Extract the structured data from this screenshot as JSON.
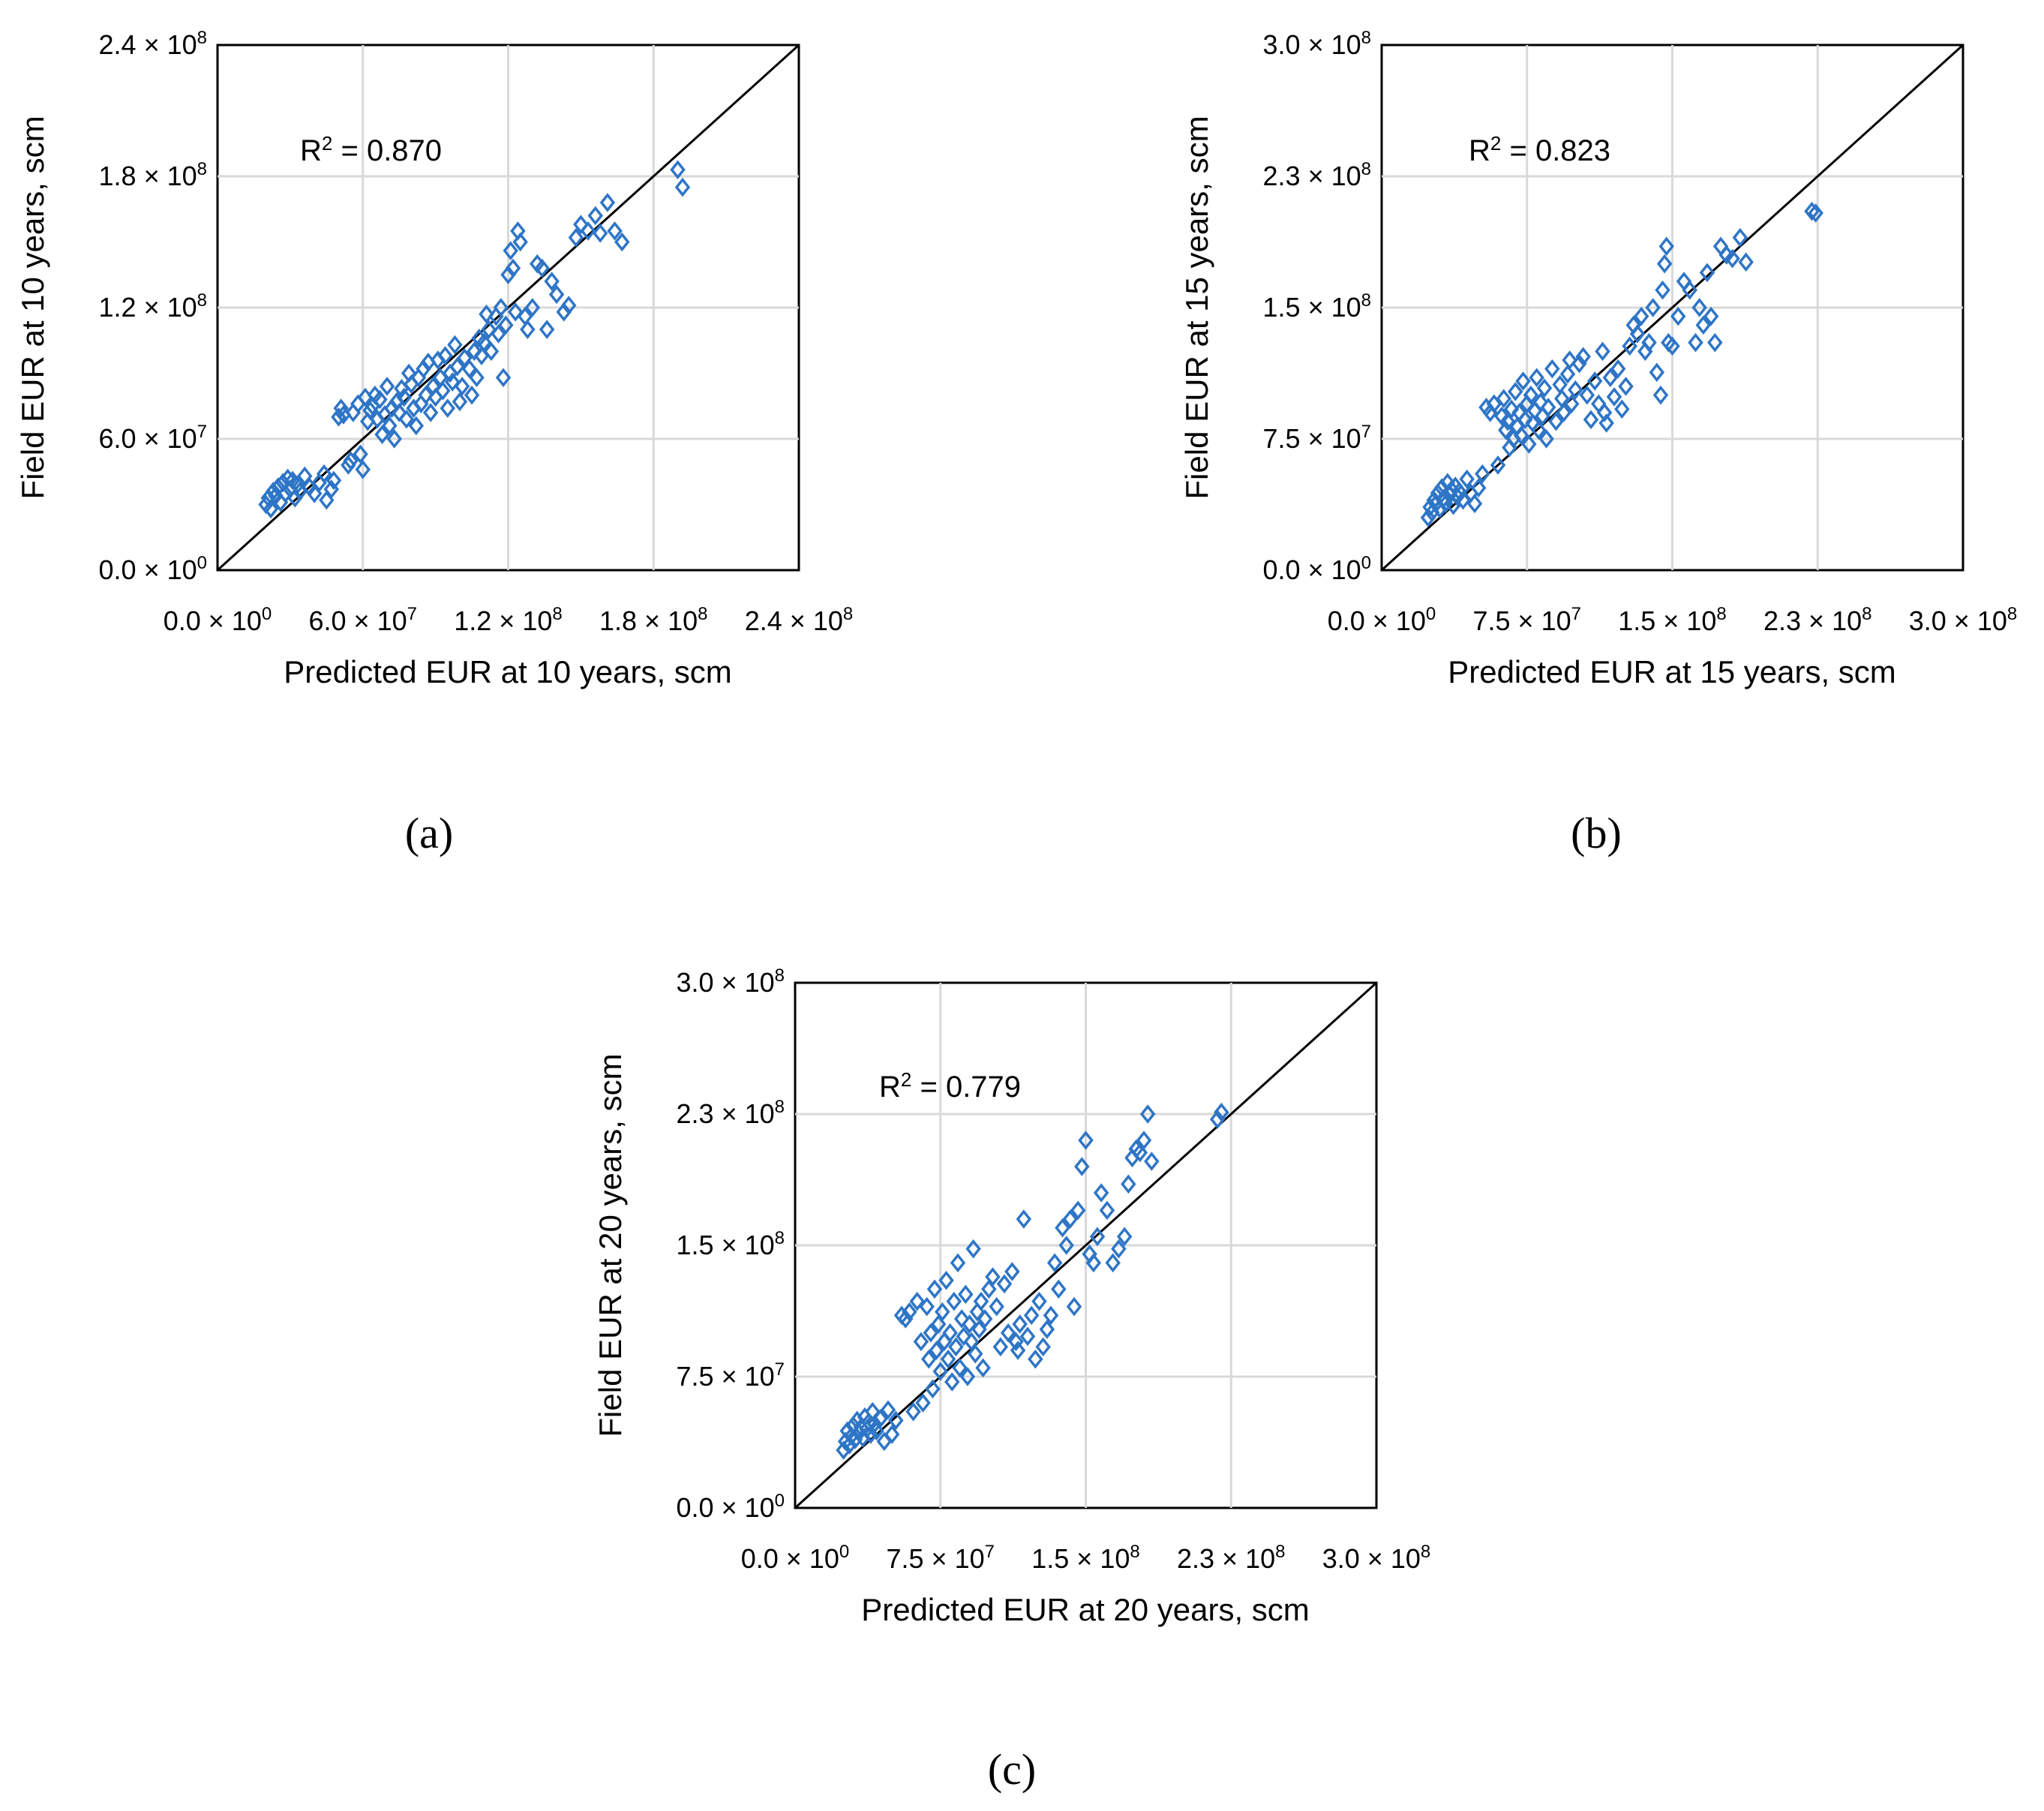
{
  "chart_data": [
    {
      "type": "scatter",
      "panel_label": "(a)",
      "xlabel": "Predicted EUR at 10 years, scm",
      "ylabel": "Field EUR at 10 years, scm",
      "annotation": {
        "prefix": "R",
        "exponent": "2",
        "text": " = 0.870"
      },
      "xlim": [
        0,
        240000000
      ],
      "ylim": [
        0,
        240000000
      ],
      "ticks": [
        0,
        60000000,
        120000000,
        180000000,
        240000000
      ],
      "tick_labels": [
        {
          "mantissa": "0.0",
          "exponent": "0"
        },
        {
          "mantissa": "6.0",
          "exponent": "7"
        },
        {
          "mantissa": "1.2",
          "exponent": "8"
        },
        {
          "mantissa": "1.8",
          "exponent": "8"
        },
        {
          "mantissa": "2.4",
          "exponent": "8"
        }
      ],
      "reference_line": "y = x",
      "marker": "open-diamond",
      "marker_color": "#2E75C6",
      "x_unit": 1000000,
      "points": [
        [
          20,
          30
        ],
        [
          21,
          33
        ],
        [
          22,
          28
        ],
        [
          23,
          36
        ],
        [
          24,
          34
        ],
        [
          25,
          38
        ],
        [
          26,
          31
        ],
        [
          27,
          40
        ],
        [
          28,
          35
        ],
        [
          29,
          42
        ],
        [
          30,
          37
        ],
        [
          31,
          41
        ],
        [
          32,
          33
        ],
        [
          33,
          39
        ],
        [
          34,
          36
        ],
        [
          36,
          43
        ],
        [
          38,
          38
        ],
        [
          40,
          35
        ],
        [
          42,
          40
        ],
        [
          44,
          44
        ],
        [
          45,
          32
        ],
        [
          47,
          37
        ],
        [
          48,
          41
        ],
        [
          50,
          70
        ],
        [
          51,
          74
        ],
        [
          52,
          71
        ],
        [
          54,
          48
        ],
        [
          55,
          50
        ],
        [
          56,
          72
        ],
        [
          58,
          76
        ],
        [
          59,
          53
        ],
        [
          60,
          46
        ],
        [
          61,
          79
        ],
        [
          62,
          68
        ],
        [
          63,
          73
        ],
        [
          64,
          75
        ],
        [
          65,
          80
        ],
        [
          66,
          69
        ],
        [
          67,
          78
        ],
        [
          68,
          62
        ],
        [
          69,
          71
        ],
        [
          70,
          84
        ],
        [
          71,
          66
        ],
        [
          72,
          74
        ],
        [
          73,
          60
        ],
        [
          74,
          77
        ],
        [
          75,
          72
        ],
        [
          76,
          83
        ],
        [
          77,
          79
        ],
        [
          78,
          69
        ],
        [
          79,
          90
        ],
        [
          80,
          85
        ],
        [
          81,
          74
        ],
        [
          82,
          66
        ],
        [
          83,
          88
        ],
        [
          84,
          76
        ],
        [
          85,
          92
        ],
        [
          86,
          80
        ],
        [
          87,
          95
        ],
        [
          88,
          72
        ],
        [
          89,
          84
        ],
        [
          90,
          79
        ],
        [
          91,
          96
        ],
        [
          92,
          88
        ],
        [
          93,
          82
        ],
        [
          94,
          98
        ],
        [
          95,
          74
        ],
        [
          96,
          90
        ],
        [
          97,
          86
        ],
        [
          98,
          103
        ],
        [
          99,
          93
        ],
        [
          100,
          77
        ],
        [
          101,
          84
        ],
        [
          102,
          97
        ],
        [
          104,
          92
        ],
        [
          105,
          80
        ],
        [
          106,
          100
        ],
        [
          107,
          88
        ],
        [
          108,
          106
        ],
        [
          109,
          98
        ],
        [
          110,
          104
        ],
        [
          111,
          117
        ],
        [
          112,
          110
        ],
        [
          113,
          100
        ],
        [
          115,
          116
        ],
        [
          116,
          108
        ],
        [
          117,
          120
        ],
        [
          118,
          88
        ],
        [
          119,
          112
        ],
        [
          120,
          135
        ],
        [
          121,
          146
        ],
        [
          122,
          138
        ],
        [
          123,
          118
        ],
        [
          124,
          155
        ],
        [
          125,
          150
        ],
        [
          127,
          116
        ],
        [
          128,
          110
        ],
        [
          130,
          120
        ],
        [
          132,
          140
        ],
        [
          134,
          138
        ],
        [
          136,
          110
        ],
        [
          138,
          132
        ],
        [
          140,
          126
        ],
        [
          143,
          118
        ],
        [
          145,
          121
        ],
        [
          148,
          152
        ],
        [
          150,
          158
        ],
        [
          153,
          155
        ],
        [
          156,
          162
        ],
        [
          158,
          154
        ],
        [
          161,
          168
        ],
        [
          164,
          155
        ],
        [
          167,
          150
        ],
        [
          190,
          183
        ],
        [
          192,
          175
        ]
      ]
    },
    {
      "type": "scatter",
      "panel_label": "(b)",
      "xlabel": "Predicted EUR at 15 years, scm",
      "ylabel": "Field EUR at 15 years, scm",
      "annotation": {
        "prefix": "R",
        "exponent": "2",
        "text": " = 0.823"
      },
      "xlim": [
        0,
        300000000
      ],
      "ylim": [
        0,
        300000000
      ],
      "ticks": [
        0,
        75000000,
        150000000,
        225000000,
        300000000
      ],
      "tick_labels": [
        {
          "mantissa": "0.0",
          "exponent": "0"
        },
        {
          "mantissa": "7.5",
          "exponent": "7"
        },
        {
          "mantissa": "1.5",
          "exponent": "8"
        },
        {
          "mantissa": "2.3",
          "exponent": "8"
        },
        {
          "mantissa": "3.0",
          "exponent": "8"
        }
      ],
      "reference_line": "y = x",
      "marker": "open-diamond",
      "marker_color": "#2E75C6",
      "x_unit": 1000000,
      "points": [
        [
          24,
          30
        ],
        [
          25,
          36
        ],
        [
          26,
          33
        ],
        [
          27,
          40
        ],
        [
          28,
          38
        ],
        [
          29,
          44
        ],
        [
          30,
          35
        ],
        [
          31,
          47
        ],
        [
          32,
          41
        ],
        [
          33,
          38
        ],
        [
          34,
          50
        ],
        [
          35,
          43
        ],
        [
          36,
          46
        ],
        [
          37,
          37
        ],
        [
          38,
          48
        ],
        [
          39,
          42
        ],
        [
          40,
          45
        ],
        [
          42,
          40
        ],
        [
          44,
          52
        ],
        [
          46,
          44
        ],
        [
          48,
          38
        ],
        [
          50,
          47
        ],
        [
          52,
          55
        ],
        [
          54,
          93
        ],
        [
          56,
          90
        ],
        [
          58,
          95
        ],
        [
          60,
          60
        ],
        [
          62,
          88
        ],
        [
          63,
          98
        ],
        [
          64,
          80
        ],
        [
          65,
          85
        ],
        [
          66,
          70
        ],
        [
          67,
          92
        ],
        [
          68,
          75
        ],
        [
          69,
          102
        ],
        [
          70,
          82
        ],
        [
          71,
          90
        ],
        [
          72,
          77
        ],
        [
          73,
          108
        ],
        [
          74,
          86
        ],
        [
          75,
          95
        ],
        [
          76,
          72
        ],
        [
          77,
          100
        ],
        [
          78,
          84
        ],
        [
          79,
          91
        ],
        [
          80,
          110
        ],
        [
          81,
          80
        ],
        [
          82,
          96
        ],
        [
          83,
          88
        ],
        [
          84,
          104
        ],
        [
          85,
          75
        ],
        [
          86,
          93
        ],
        [
          88,
          115
        ],
        [
          90,
          85
        ],
        [
          92,
          106
        ],
        [
          93,
          98
        ],
        [
          94,
          90
        ],
        [
          96,
          112
        ],
        [
          97,
          120
        ],
        [
          98,
          95
        ],
        [
          100,
          103
        ],
        [
          102,
          118
        ],
        [
          104,
          122
        ],
        [
          106,
          100
        ],
        [
          108,
          86
        ],
        [
          110,
          108
        ],
        [
          112,
          95
        ],
        [
          114,
          125
        ],
        [
          115,
          90
        ],
        [
          116,
          84
        ],
        [
          118,
          110
        ],
        [
          120,
          99
        ],
        [
          122,
          115
        ],
        [
          124,
          92
        ],
        [
          126,
          105
        ],
        [
          128,
          128
        ],
        [
          130,
          140
        ],
        [
          132,
          135
        ],
        [
          134,
          145
        ],
        [
          136,
          125
        ],
        [
          138,
          130
        ],
        [
          140,
          150
        ],
        [
          142,
          113
        ],
        [
          144,
          100
        ],
        [
          145,
          160
        ],
        [
          146,
          175
        ],
        [
          147,
          185
        ],
        [
          148,
          130
        ],
        [
          150,
          128
        ],
        [
          153,
          145
        ],
        [
          156,
          165
        ],
        [
          159,
          160
        ],
        [
          162,
          130
        ],
        [
          164,
          150
        ],
        [
          166,
          140
        ],
        [
          168,
          170
        ],
        [
          170,
          145
        ],
        [
          172,
          130
        ],
        [
          175,
          185
        ],
        [
          178,
          180
        ],
        [
          181,
          178
        ],
        [
          185,
          190
        ],
        [
          188,
          176
        ],
        [
          222,
          205
        ],
        [
          224,
          204
        ]
      ]
    },
    {
      "type": "scatter",
      "panel_label": "(c)",
      "xlabel": "Predicted EUR at 20 years, scm",
      "ylabel": "Field EUR at 20 years, scm",
      "annotation": {
        "prefix": "R",
        "exponent": "2",
        "text": " = 0.779"
      },
      "xlim": [
        0,
        300000000
      ],
      "ylim": [
        0,
        300000000
      ],
      "ticks": [
        0,
        75000000,
        150000000,
        225000000,
        300000000
      ],
      "tick_labels": [
        {
          "mantissa": "0.0",
          "exponent": "0"
        },
        {
          "mantissa": "7.5",
          "exponent": "7"
        },
        {
          "mantissa": "1.5",
          "exponent": "8"
        },
        {
          "mantissa": "2.3",
          "exponent": "8"
        },
        {
          "mantissa": "3.0",
          "exponent": "8"
        }
      ],
      "reference_line": "y = x",
      "marker": "open-diamond",
      "marker_color": "#2E75C6",
      "x_unit": 1000000,
      "points": [
        [
          25,
          33
        ],
        [
          26,
          38
        ],
        [
          27,
          44
        ],
        [
          28,
          36
        ],
        [
          29,
          41
        ],
        [
          30,
          47
        ],
        [
          31,
          39
        ],
        [
          32,
          50
        ],
        [
          33,
          43
        ],
        [
          34,
          46
        ],
        [
          35,
          40
        ],
        [
          36,
          52
        ],
        [
          37,
          45
        ],
        [
          38,
          49
        ],
        [
          39,
          42
        ],
        [
          40,
          55
        ],
        [
          41,
          48
        ],
        [
          42,
          44
        ],
        [
          44,
          51
        ],
        [
          46,
          38
        ],
        [
          48,
          56
        ],
        [
          50,
          42
        ],
        [
          52,
          50
        ],
        [
          55,
          110
        ],
        [
          57,
          108
        ],
        [
          59,
          112
        ],
        [
          61,
          55
        ],
        [
          63,
          118
        ],
        [
          65,
          95
        ],
        [
          66,
          60
        ],
        [
          68,
          115
        ],
        [
          69,
          85
        ],
        [
          70,
          100
        ],
        [
          71,
          68
        ],
        [
          72,
          125
        ],
        [
          73,
          90
        ],
        [
          74,
          105
        ],
        [
          75,
          78
        ],
        [
          76,
          112
        ],
        [
          77,
          95
        ],
        [
          78,
          130
        ],
        [
          79,
          85
        ],
        [
          80,
          100
        ],
        [
          81,
          72
        ],
        [
          82,
          118
        ],
        [
          83,
          92
        ],
        [
          84,
          140
        ],
        [
          85,
          80
        ],
        [
          86,
          108
        ],
        [
          87,
          98
        ],
        [
          88,
          122
        ],
        [
          89,
          75
        ],
        [
          90,
          105
        ],
        [
          91,
          95
        ],
        [
          92,
          148
        ],
        [
          93,
          88
        ],
        [
          94,
          112
        ],
        [
          95,
          102
        ],
        [
          96,
          118
        ],
        [
          97,
          80
        ],
        [
          98,
          108
        ],
        [
          100,
          125
        ],
        [
          102,
          132
        ],
        [
          104,
          115
        ],
        [
          106,
          92
        ],
        [
          108,
          128
        ],
        [
          110,
          100
        ],
        [
          112,
          135
        ],
        [
          114,
          95
        ],
        [
          115,
          90
        ],
        [
          116,
          105
        ],
        [
          118,
          165
        ],
        [
          120,
          98
        ],
        [
          122,
          110
        ],
        [
          124,
          85
        ],
        [
          126,
          118
        ],
        [
          128,
          92
        ],
        [
          130,
          102
        ],
        [
          132,
          110
        ],
        [
          134,
          140
        ],
        [
          136,
          125
        ],
        [
          138,
          160
        ],
        [
          140,
          150
        ],
        [
          142,
          165
        ],
        [
          144,
          115
        ],
        [
          146,
          170
        ],
        [
          148,
          195
        ],
        [
          150,
          210
        ],
        [
          152,
          145
        ],
        [
          154,
          140
        ],
        [
          156,
          155
        ],
        [
          158,
          180
        ],
        [
          161,
          170
        ],
        [
          164,
          140
        ],
        [
          167,
          148
        ],
        [
          170,
          155
        ],
        [
          172,
          185
        ],
        [
          174,
          200
        ],
        [
          176,
          205
        ],
        [
          178,
          203
        ],
        [
          180,
          210
        ],
        [
          182,
          225
        ],
        [
          184,
          198
        ],
        [
          218,
          222
        ],
        [
          220,
          226
        ]
      ]
    }
  ]
}
